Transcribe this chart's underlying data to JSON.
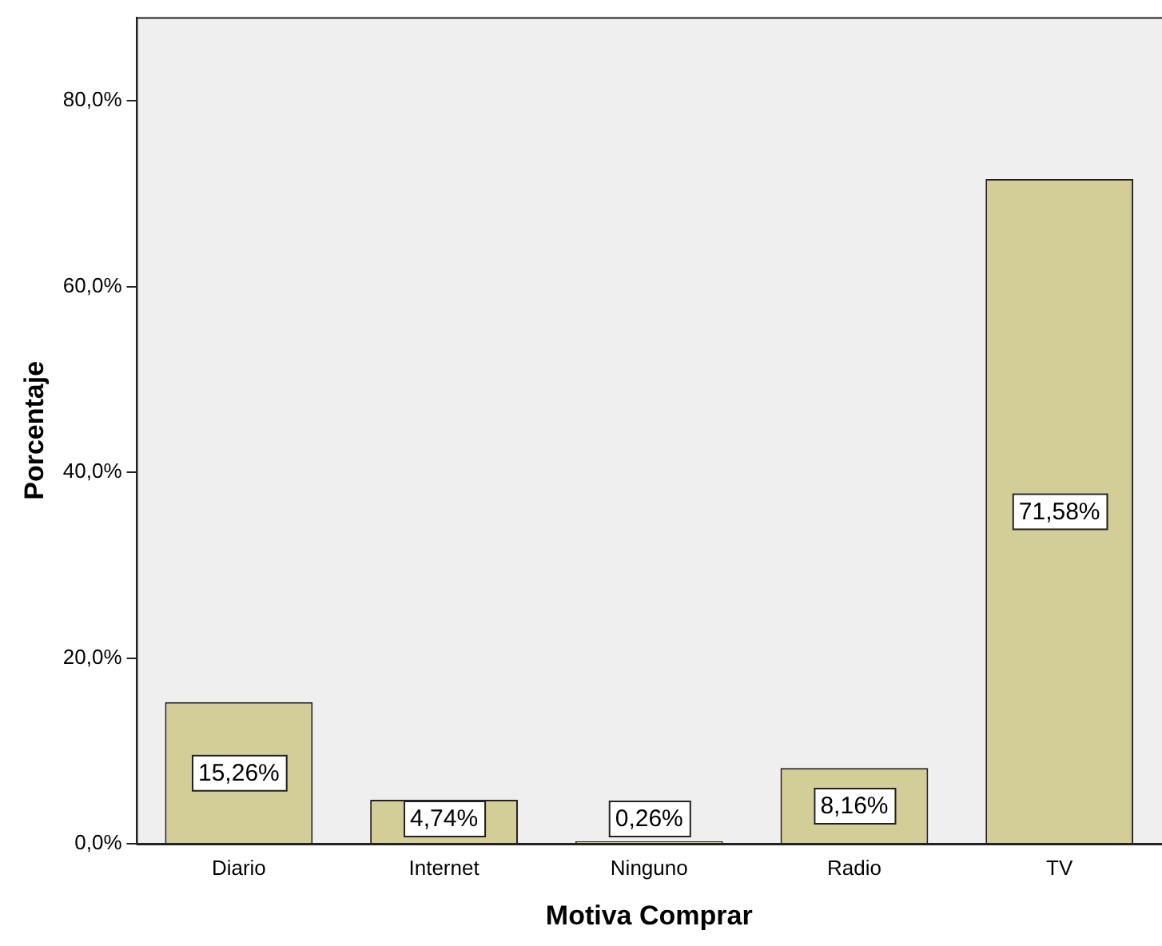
{
  "chart_data": {
    "type": "bar",
    "xlabel": "Motiva Comprar",
    "ylabel": "Porcentaje",
    "categories": [
      "Diario",
      "Internet",
      "Ninguno",
      "Radio",
      "TV"
    ],
    "values": [
      15.26,
      4.74,
      0.26,
      8.16,
      71.58
    ],
    "value_labels": [
      "15,26%",
      "4,74%",
      "0,26%",
      "8,16%",
      "71,58%"
    ],
    "color": "#d3ce97",
    "ylim": [
      0,
      89
    ],
    "yticks": [
      {
        "value": 0,
        "label": "0,0%"
      },
      {
        "value": 20,
        "label": "20,0%"
      },
      {
        "value": 40,
        "label": "40,0%"
      },
      {
        "value": 60,
        "label": "60,0%"
      },
      {
        "value": 80,
        "label": "80,0%"
      }
    ],
    "grid": false,
    "legend": false
  }
}
